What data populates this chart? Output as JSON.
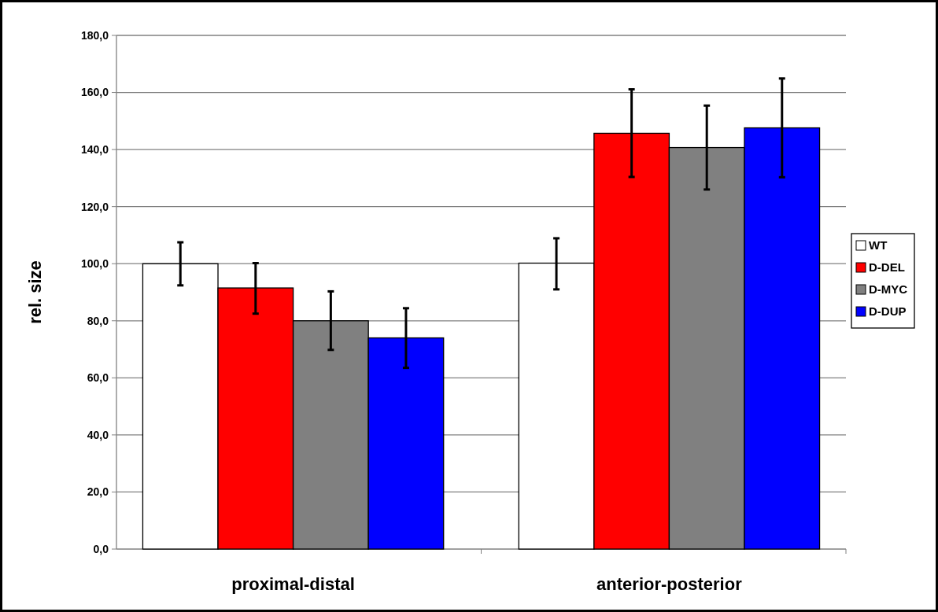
{
  "chart_data": {
    "type": "bar",
    "ylabel": "rel. size",
    "categories": [
      "proximal-distal",
      "anterior-posterior"
    ],
    "series": [
      {
        "name": "WT",
        "color": "#ffffff",
        "values": [
          100,
          100.2
        ],
        "errors": [
          [
            92.4,
            107.5
          ],
          [
            91,
            108.9
          ]
        ]
      },
      {
        "name": "D-DEL",
        "color": "#ff0000",
        "values": [
          91.5,
          145.7
        ],
        "errors": [
          [
            82.5,
            100.2
          ],
          [
            130.4,
            161.1
          ]
        ]
      },
      {
        "name": "D-MYC",
        "color": "#808080",
        "values": [
          80,
          140.7
        ],
        "errors": [
          [
            69.8,
            90.3
          ],
          [
            126,
            155.4
          ]
        ]
      },
      {
        "name": "D-DUP",
        "color": "#0000ff",
        "values": [
          74,
          147.6
        ],
        "errors": [
          [
            63.5,
            84.4
          ],
          [
            130.3,
            164.9
          ]
        ]
      }
    ],
    "ylim": [
      0,
      180
    ],
    "yticks": [
      {
        "value": 0,
        "label": "0,0"
      },
      {
        "value": 20,
        "label": "20,0"
      },
      {
        "value": 40,
        "label": "40,0"
      },
      {
        "value": 60,
        "label": "60,0"
      },
      {
        "value": 80,
        "label": "80,0"
      },
      {
        "value": 100,
        "label": "100,0"
      },
      {
        "value": 120,
        "label": "120,0"
      },
      {
        "value": 140,
        "label": "140,0"
      },
      {
        "value": 160,
        "label": "160,0"
      },
      {
        "value": 180,
        "label": "180,0"
      }
    ],
    "grid": "y",
    "legend": "right"
  }
}
